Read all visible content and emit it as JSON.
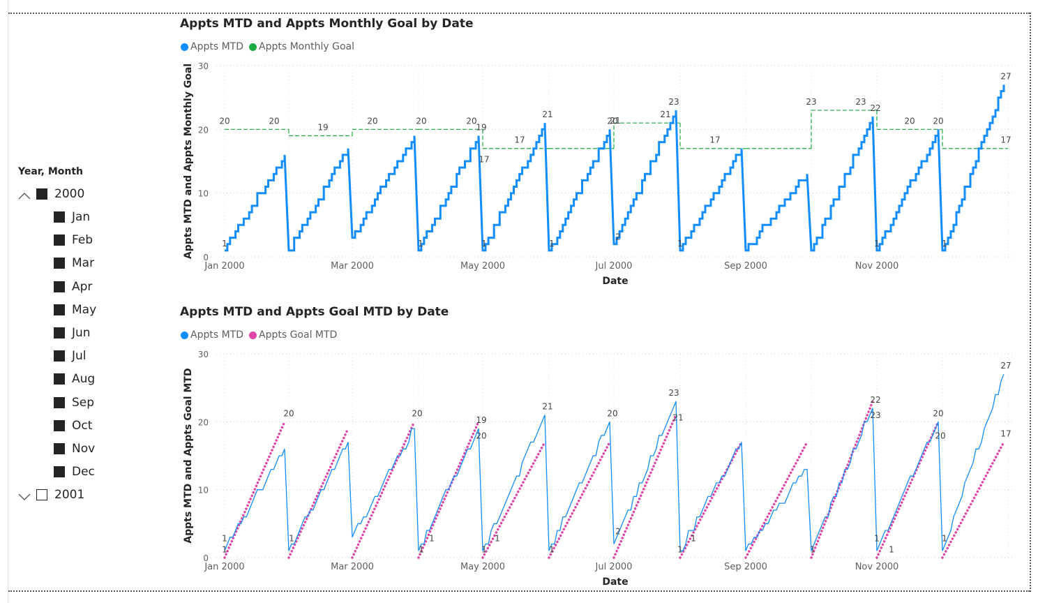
{
  "slicer": {
    "title": "Year, Month",
    "years": [
      {
        "label": "2000",
        "expanded": true,
        "checked": true
      },
      {
        "label": "2001",
        "expanded": false,
        "checked": false
      }
    ],
    "months": [
      "Jan",
      "Feb",
      "Mar",
      "Apr",
      "May",
      "Jun",
      "Jul",
      "Aug",
      "Sep",
      "Oct",
      "Nov",
      "Dec"
    ]
  },
  "colors": {
    "appts_mtd": "#118DFF",
    "monthly_goal": "#1AAB40",
    "goal_mtd": "#E044A7",
    "text": "#252423",
    "muted": "#605e5c"
  },
  "chart_data": [
    {
      "type": "line",
      "title": "Appts MTD and Appts Monthly Goal by Date",
      "xlabel": "Date",
      "ylabel": "Appts MTD and Appts Monthly Goal",
      "ylim": [
        0,
        30
      ],
      "yticks": [
        0,
        10,
        20,
        30
      ],
      "xticks": [
        "Jan 2000",
        "Mar 2000",
        "May 2000",
        "Jul 2000",
        "Sep 2000",
        "Nov 2000"
      ],
      "grid": true,
      "legend_position": "top-left",
      "series": [
        {
          "name": "Appts MTD",
          "style": "step",
          "months": [
            "Jan",
            "Feb",
            "Mar",
            "Apr",
            "May",
            "Jun",
            "Jul",
            "Aug",
            "Sep",
            "Oct",
            "Nov",
            "Dec"
          ],
          "start": [
            1,
            1,
            3,
            1,
            1,
            1,
            2,
            1,
            1,
            1,
            1,
            1
          ],
          "end": [
            16,
            17,
            19,
            19,
            21,
            20,
            23,
            17,
            13,
            22,
            20,
            27
          ]
        },
        {
          "name": "Appts Monthly Goal",
          "style": "dashed-step",
          "months": [
            "Jan",
            "Feb",
            "Mar",
            "Apr",
            "May",
            "Jun",
            "Jul",
            "Aug",
            "Sep",
            "Oct",
            "Nov",
            "Dec"
          ],
          "values": [
            20,
            19,
            20,
            20,
            17,
            17,
            21,
            17,
            17,
            23,
            20,
            17
          ]
        }
      ],
      "data_labels": [
        "20",
        "20",
        "19",
        "20",
        "20",
        "19",
        "20",
        "17",
        "17",
        "21",
        "20",
        "21",
        "23",
        "21",
        "17",
        "23",
        "22",
        "23",
        "20",
        "20",
        "17",
        "27",
        "1",
        "1",
        "1",
        "1",
        "2",
        "1",
        "1",
        "1"
      ]
    },
    {
      "type": "line",
      "title": "Appts MTD and Appts Goal MTD by Date",
      "xlabel": "Date",
      "ylabel": "Appts MTD and Appts Goal MTD",
      "ylim": [
        0,
        30
      ],
      "yticks": [
        0,
        10,
        20,
        30
      ],
      "xticks": [
        "Jan 2000",
        "Mar 2000",
        "May 2000",
        "Jul 2000",
        "Sep 2000",
        "Nov 2000"
      ],
      "grid": true,
      "legend_position": "top-left",
      "series": [
        {
          "name": "Appts MTD",
          "style": "line",
          "months": [
            "Jan",
            "Feb",
            "Mar",
            "Apr",
            "May",
            "Jun",
            "Jul",
            "Aug",
            "Sep",
            "Oct",
            "Nov",
            "Dec"
          ],
          "start": [
            1,
            1,
            3,
            1,
            1,
            1,
            2,
            1,
            1,
            1,
            1,
            1
          ],
          "end": [
            16,
            17,
            19,
            19,
            21,
            20,
            23,
            17,
            13,
            22,
            20,
            27
          ]
        },
        {
          "name": "Appts Goal MTD",
          "style": "dotted",
          "months": [
            "Jan",
            "Feb",
            "Mar",
            "Apr",
            "May",
            "Jun",
            "Jul",
            "Aug",
            "Sep",
            "Oct",
            "Nov",
            "Dec"
          ],
          "start": [
            0,
            0,
            0,
            0,
            0,
            0,
            0,
            0,
            0,
            0,
            0,
            0
          ],
          "end": [
            20,
            19,
            20,
            20,
            17,
            17,
            21,
            17,
            17,
            23,
            20,
            17
          ]
        }
      ],
      "data_labels": [
        "20",
        "20",
        "19",
        "20",
        "21",
        "20",
        "23",
        "21",
        "22",
        "23",
        "20",
        "20",
        "27",
        "17",
        "1",
        "1",
        "1",
        "1",
        "1",
        "1",
        "1",
        "1",
        "1",
        "1",
        "2",
        "1",
        "1",
        "1",
        "1"
      ]
    }
  ]
}
